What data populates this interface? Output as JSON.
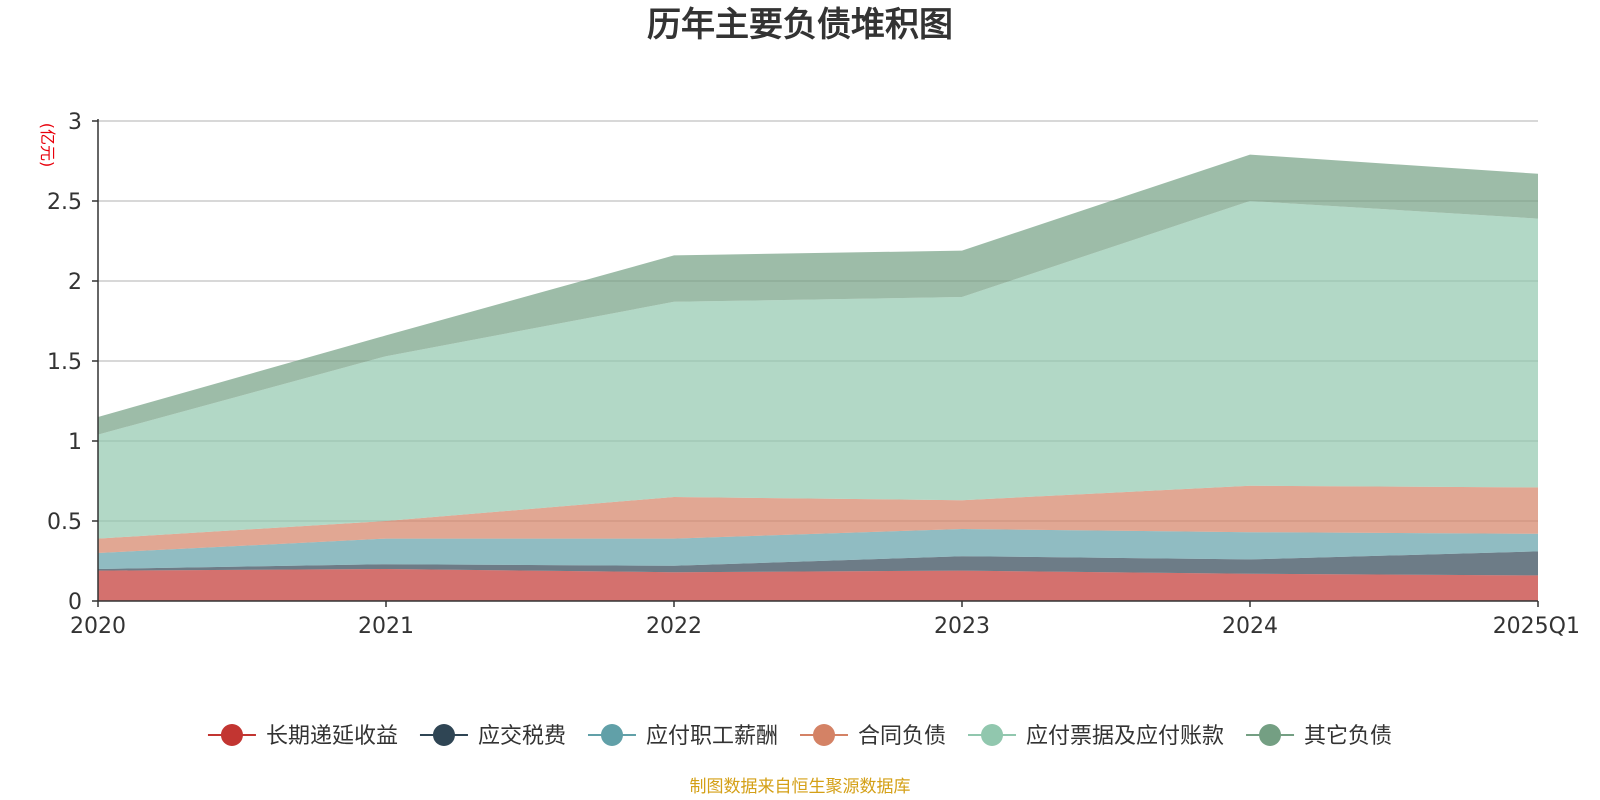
{
  "chart_data": {
    "type": "area",
    "stacked": true,
    "title": "历年主要负债堆积图",
    "unit_label": "(亿元)",
    "x": [
      "2020",
      "2021",
      "2022",
      "2023",
      "2024",
      "2025Q1"
    ],
    "ylim": [
      0,
      3
    ],
    "yticks": [
      "0",
      "0.5",
      "1",
      "1.5",
      "2",
      "2.5",
      "3"
    ],
    "grid": true,
    "legend_position": "bottom",
    "series": [
      {
        "name": "长期递延收益",
        "color": "#c23531",
        "values": [
          0.19,
          0.2,
          0.18,
          0.19,
          0.17,
          0.16
        ]
      },
      {
        "name": "应交税费",
        "color": "#2f4554",
        "values": [
          0.01,
          0.03,
          0.04,
          0.09,
          0.09,
          0.15
        ]
      },
      {
        "name": "应付职工薪酬",
        "color": "#61a0a8",
        "values": [
          0.1,
          0.16,
          0.17,
          0.17,
          0.17,
          0.11
        ]
      },
      {
        "name": "合同负债",
        "color": "#d48265",
        "values": [
          0.09,
          0.11,
          0.26,
          0.18,
          0.29,
          0.29
        ]
      },
      {
        "name": "应付票据及应付账款",
        "color": "#91c7ae",
        "values": [
          0.65,
          1.03,
          1.22,
          1.27,
          1.78,
          1.68
        ]
      },
      {
        "name": "其它负债",
        "color": "#749f83",
        "values": [
          0.11,
          0.13,
          0.29,
          0.29,
          0.29,
          0.28
        ]
      }
    ],
    "source_note": "制图数据来自恒生聚源数据库"
  }
}
